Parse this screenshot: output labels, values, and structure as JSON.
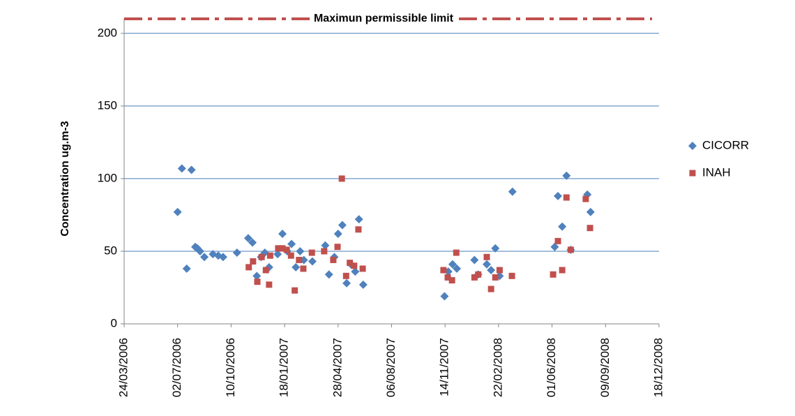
{
  "chart_data": {
    "type": "scatter",
    "y_label": "Concentration ug.m-3",
    "limit": {
      "label": "Maximun permissible limit",
      "value": 210,
      "color": "#c0504d"
    },
    "ylim": [
      0,
      210
    ],
    "yticks": [
      0,
      50,
      100,
      150,
      200
    ],
    "grid": true,
    "xlim": [
      "24/03/2006",
      "18/12/2008"
    ],
    "xticks": [
      "24/03/2006",
      "02/07/2006",
      "10/10/2006",
      "18/01/2007",
      "28/04/2007",
      "06/08/2007",
      "14/11/2007",
      "22/02/2008",
      "01/06/2008",
      "09/09/2008",
      "18/12/2008"
    ],
    "legend": "right",
    "series": [
      {
        "name": "CICORR",
        "color": "#4f81bd",
        "marker": "diamond",
        "x": [
          "02/07/2006",
          "10/07/2006",
          "19/07/2006",
          "28/07/2006",
          "04/08/2006",
          "08/08/2006",
          "13/08/2006",
          "21/08/2006",
          "06/09/2006",
          "16/09/2006",
          "25/09/2006",
          "21/10/2006",
          "11/11/2006",
          "19/11/2006",
          "27/11/2006",
          "05/12/2006",
          "12/12/2006",
          "20/12/2006",
          "05/01/2007",
          "14/01/2007",
          "23/01/2007",
          "31/01/2007",
          "08/02/2007",
          "16/02/2007",
          "23/02/2007",
          "11/03/2007",
          "04/04/2007",
          "11/04/2007",
          "21/04/2007",
          "28/04/2007",
          "06/05/2007",
          "14/05/2007",
          "22/05/2007",
          "30/05/2007",
          "06/06/2007",
          "14/06/2007",
          "13/11/2007",
          "20/11/2007",
          "28/11/2007",
          "06/12/2007",
          "08/01/2008",
          "15/01/2008",
          "31/01/2008",
          "08/02/2008",
          "16/02/2008",
          "24/02/2008",
          "19/03/2008",
          "06/06/2008",
          "12/06/2008",
          "20/06/2008",
          "28/06/2008",
          "06/07/2008",
          "06/08/2008",
          "12/08/2008"
        ],
        "values": [
          77,
          107,
          38,
          106,
          53,
          52,
          50,
          46,
          48,
          47,
          46,
          49,
          59,
          56,
          33,
          46,
          49,
          39,
          48,
          62,
          50,
          55,
          39,
          50,
          44,
          43,
          54,
          34,
          46,
          62,
          68,
          28,
          41,
          36,
          72,
          27,
          19,
          36,
          41,
          38,
          44,
          34,
          41,
          37,
          52,
          33,
          91,
          53,
          88,
          67,
          102,
          51,
          89,
          77
        ]
      },
      {
        "name": "INAH",
        "color": "#c0504d",
        "marker": "square",
        "x": [
          "12/11/2006",
          "20/11/2006",
          "28/11/2006",
          "06/12/2006",
          "14/12/2006",
          "20/12/2006",
          "22/12/2006",
          "06/01/2007",
          "14/01/2007",
          "22/01/2007",
          "30/01/2007",
          "06/02/2007",
          "14/02/2007",
          "22/02/2007",
          "10/03/2007",
          "02/04/2007",
          "19/04/2007",
          "27/04/2007",
          "05/05/2007",
          "13/05/2007",
          "20/05/2007",
          "28/05/2007",
          "05/06/2007",
          "13/06/2007",
          "11/11/2007",
          "19/11/2007",
          "27/11/2007",
          "05/12/2007",
          "08/01/2008",
          "15/01/2008",
          "31/01/2008",
          "08/02/2008",
          "16/02/2008",
          "24/02/2008",
          "18/03/2008",
          "03/06/2008",
          "12/06/2008",
          "20/06/2008",
          "28/06/2008",
          "06/07/2008",
          "03/08/2008",
          "11/08/2008"
        ],
        "values": [
          39,
          43,
          29,
          46,
          37,
          27,
          47,
          52,
          52,
          51,
          47,
          23,
          44,
          38,
          49,
          50,
          44,
          53,
          100,
          33,
          42,
          40,
          65,
          38,
          37,
          32,
          30,
          49,
          32,
          34,
          46,
          24,
          32,
          37,
          33,
          34,
          57,
          37,
          87,
          51,
          86,
          66
        ]
      }
    ]
  }
}
